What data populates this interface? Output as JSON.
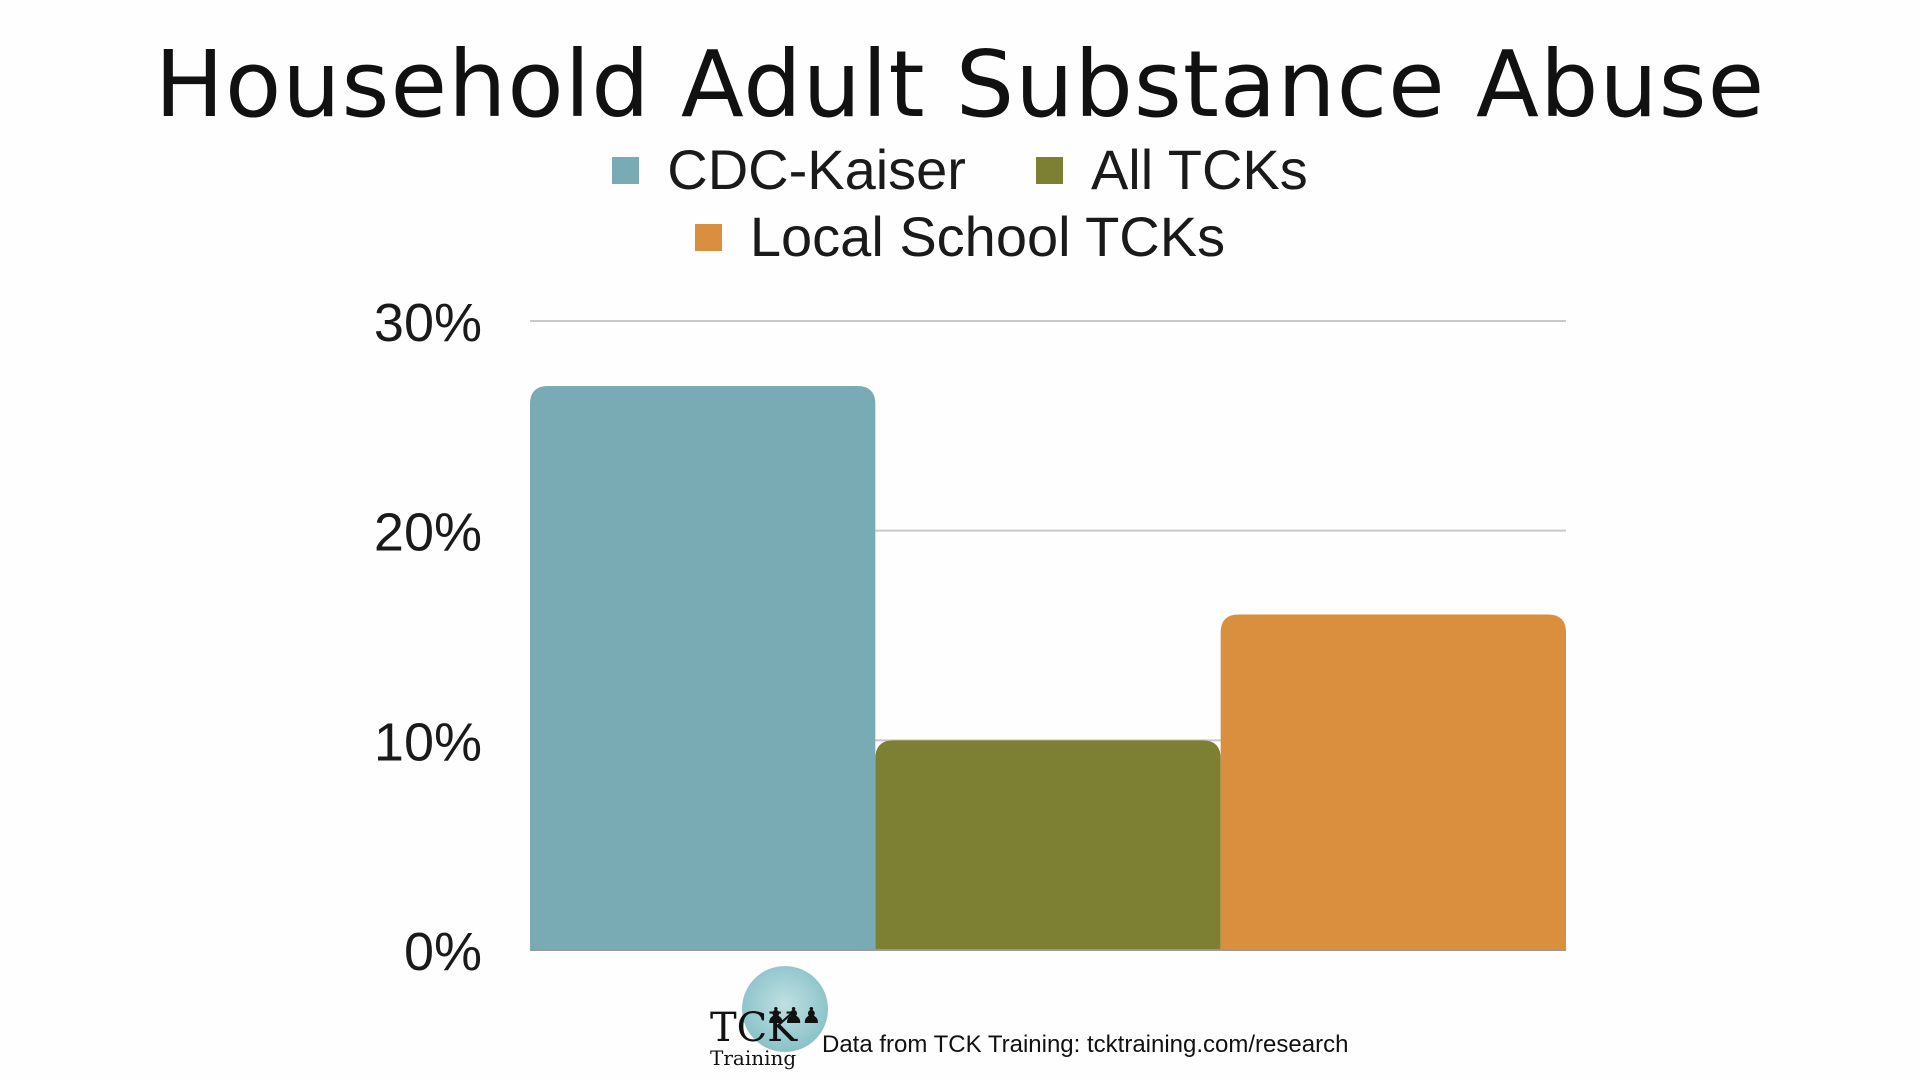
{
  "chart_data": {
    "type": "bar",
    "title": "Household Adult Substance Abuse",
    "categories": [
      ""
    ],
    "series": [
      {
        "name": "CDC-Kaiser",
        "values": [
          26.9
        ],
        "color": "#78abb4"
      },
      {
        "name": "All TCKs",
        "values": [
          10.0
        ],
        "color": "#7d8032"
      },
      {
        "name": "Local School TCKs",
        "values": [
          16.0
        ],
        "color": "#d98f3e"
      }
    ],
    "ylim": [
      0,
      30
    ],
    "yticks": [
      "0%",
      "10%",
      "20%",
      "30%"
    ],
    "xlabel": "",
    "ylabel": "",
    "grid": true,
    "legend_position": "top"
  },
  "footer": {
    "logo_big": "TCK",
    "logo_small": "Training",
    "source": "Data from TCK Training: tcktraining.com/research"
  }
}
